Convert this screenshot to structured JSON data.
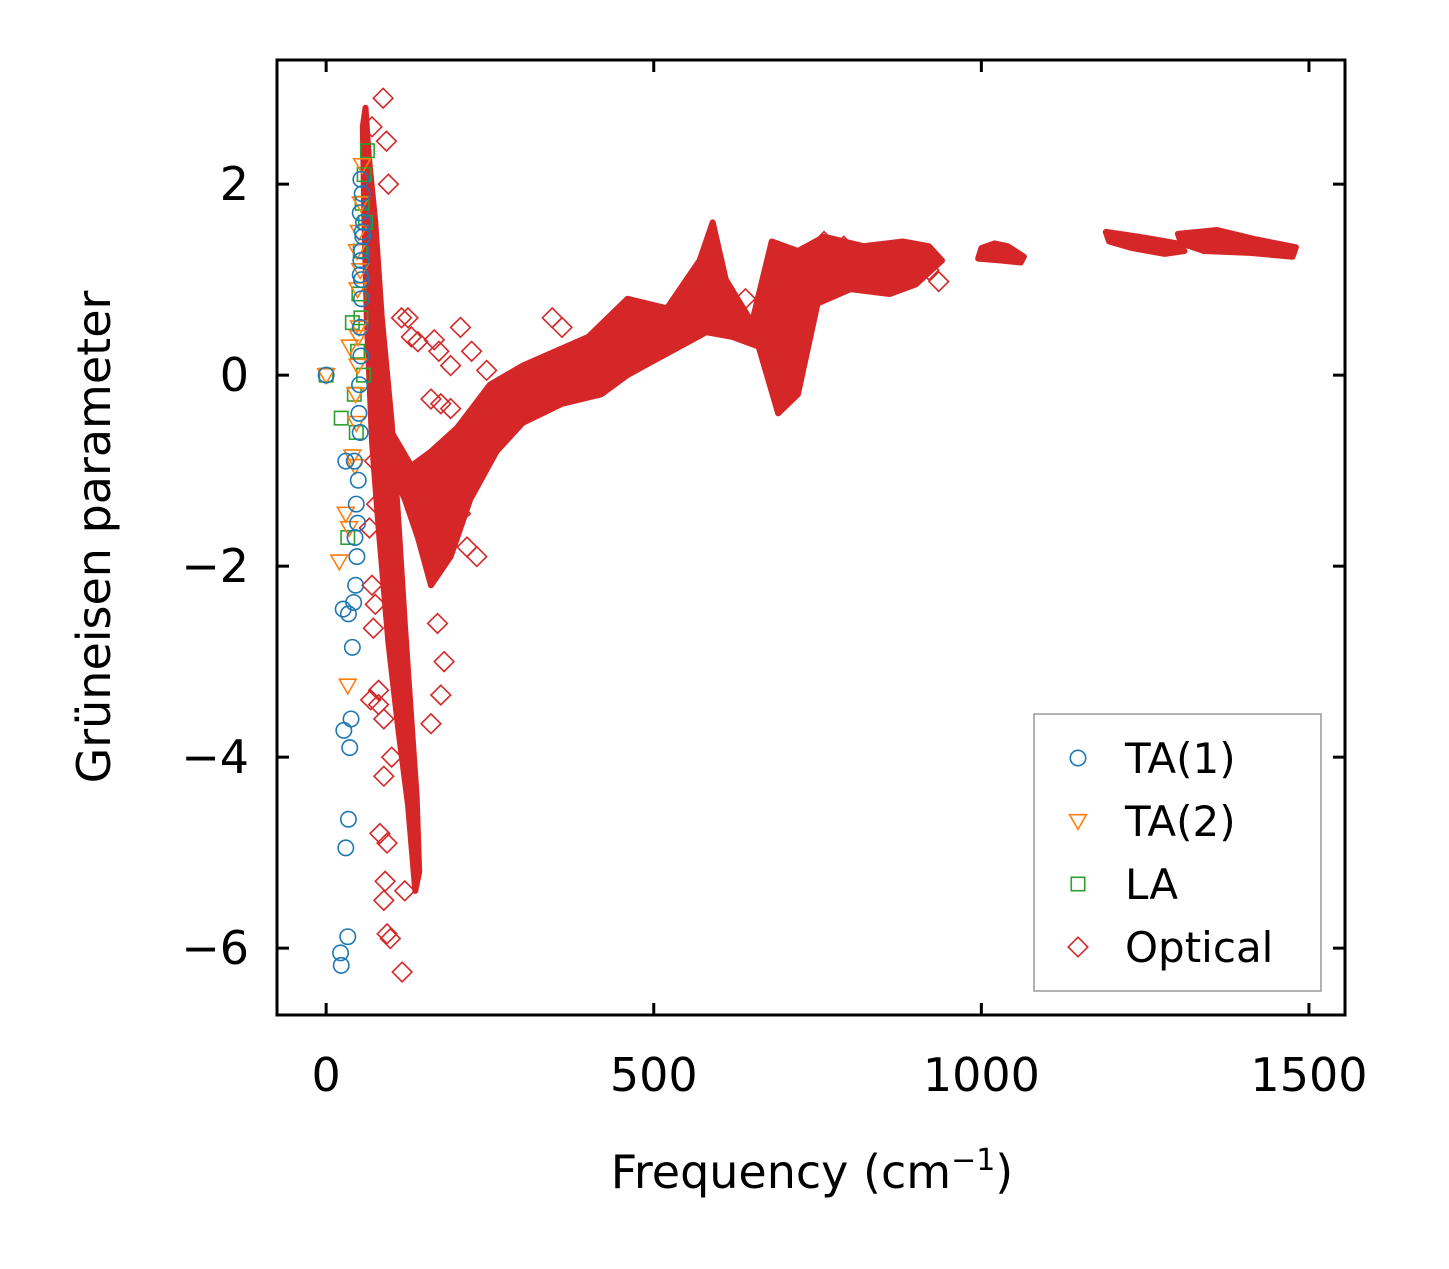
{
  "chart_data": {
    "type": "scatter",
    "title": "",
    "xlabel": "Frequency (cm",
    "xlabel_sup": "−1",
    "xlabel_close": ")",
    "ylabel": "Grüneisen parameter",
    "xlim": [
      -75,
      1555
    ],
    "ylim": [
      -6.7,
      3.3
    ],
    "x_ticks": [
      0,
      500,
      1000,
      1500
    ],
    "x_tick_labels": [
      "0",
      "500",
      "1000",
      "1500"
    ],
    "y_ticks": [
      -6,
      -4,
      -2,
      0,
      2
    ],
    "y_tick_labels": [
      "−6",
      "−4",
      "−2",
      "0",
      "2"
    ],
    "grid": false,
    "legend_position": "bottom-right",
    "series": [
      {
        "name": "TA(1)",
        "marker": "circle",
        "color": "#1f77b4",
        "points": [
          [
            0,
            0.0
          ],
          [
            22,
            -6.05
          ],
          [
            23,
            -6.18
          ],
          [
            33,
            -5.88
          ],
          [
            30,
            -4.95
          ],
          [
            34,
            -4.65
          ],
          [
            27,
            -3.72
          ],
          [
            36,
            -3.9
          ],
          [
            38,
            -3.6
          ],
          [
            40,
            -2.85
          ],
          [
            26,
            -2.45
          ],
          [
            34,
            -2.5
          ],
          [
            42,
            -2.38
          ],
          [
            45,
            -2.2
          ],
          [
            47,
            -1.9
          ],
          [
            44,
            -1.7
          ],
          [
            48,
            -1.55
          ],
          [
            46,
            -1.35
          ],
          [
            49,
            -1.1
          ],
          [
            43,
            -0.9
          ],
          [
            30,
            -0.9
          ],
          [
            52,
            -0.6
          ],
          [
            50,
            -0.4
          ],
          [
            51,
            -0.1
          ],
          [
            53,
            0.2
          ],
          [
            52,
            0.5
          ],
          [
            54,
            0.8
          ],
          [
            52,
            1.05
          ],
          [
            54,
            1.3
          ],
          [
            55,
            1.5
          ],
          [
            52,
            1.7
          ],
          [
            55,
            1.9
          ],
          [
            53,
            2.05
          ],
          [
            56,
            1.45
          ],
          [
            54,
            1.0
          ],
          [
            57,
            1.6
          ],
          [
            53,
            1.2
          ]
        ]
      },
      {
        "name": "TA(2)",
        "marker": "triangle-down",
        "color": "#ff7f0e",
        "points": [
          [
            0,
            0.0
          ],
          [
            20,
            -1.95
          ],
          [
            33,
            -3.25
          ],
          [
            35,
            -1.6
          ],
          [
            30,
            -1.45
          ],
          [
            36,
            0.3
          ],
          [
            40,
            -0.85
          ],
          [
            44,
            -0.95
          ],
          [
            46,
            -0.5
          ],
          [
            45,
            -0.2
          ],
          [
            48,
            0.1
          ],
          [
            50,
            0.5
          ],
          [
            48,
            0.9
          ],
          [
            52,
            1.1
          ],
          [
            50,
            1.5
          ],
          [
            53,
            1.8
          ],
          [
            55,
            2.2
          ],
          [
            47,
            1.3
          ],
          [
            49,
            0.4
          ]
        ]
      },
      {
        "name": "LA",
        "marker": "square",
        "color": "#2ca02c",
        "points": [
          [
            0,
            0.0
          ],
          [
            23,
            -0.45
          ],
          [
            33,
            -1.7
          ],
          [
            40,
            0.55
          ],
          [
            43,
            -0.2
          ],
          [
            46,
            -0.6
          ],
          [
            48,
            0.25
          ],
          [
            50,
            0.85
          ],
          [
            52,
            1.3
          ],
          [
            55,
            1.8
          ],
          [
            58,
            2.1
          ],
          [
            63,
            2.35
          ],
          [
            57,
            0.0
          ],
          [
            53,
            0.6
          ],
          [
            60,
            1.6
          ]
        ]
      },
      {
        "name": "Optical",
        "marker": "diamond",
        "color": "#d62728",
        "dense_band": [
          [
            60,
            2.8
          ],
          [
            65,
            2.3
          ],
          [
            75,
            1.6
          ],
          [
            85,
            0.6
          ],
          [
            100,
            -0.5
          ],
          [
            110,
            -1.5
          ],
          [
            120,
            -2.6
          ],
          [
            130,
            -3.6
          ],
          [
            138,
            -4.4
          ],
          [
            142,
            -5.2
          ],
          [
            136,
            -5.4
          ],
          [
            125,
            -4.5
          ],
          [
            110,
            -3.7
          ],
          [
            95,
            -2.8
          ],
          [
            80,
            -1.6
          ],
          [
            70,
            -0.7
          ],
          [
            62,
            0.6
          ],
          [
            58,
            1.8
          ],
          [
            56,
            2.6
          ]
        ],
        "dense_band_upper": [
          [
            60,
            2.75
          ],
          [
            70,
            1.4
          ],
          [
            85,
            -0.2
          ],
          [
            100,
            -0.6
          ],
          [
            130,
            -0.95
          ],
          [
            160,
            -0.8
          ],
          [
            200,
            -0.55
          ],
          [
            250,
            -0.1
          ],
          [
            300,
            0.1
          ],
          [
            350,
            0.25
          ],
          [
            400,
            0.4
          ],
          [
            460,
            0.8
          ],
          [
            520,
            0.7
          ],
          [
            570,
            1.2
          ],
          [
            590,
            1.6
          ],
          [
            610,
            1.0
          ],
          [
            650,
            0.55
          ],
          [
            680,
            1.4
          ],
          [
            720,
            1.3
          ],
          [
            760,
            1.45
          ],
          [
            820,
            1.35
          ],
          [
            880,
            1.4
          ],
          [
            920,
            1.35
          ],
          [
            940,
            1.2
          ],
          [
            900,
            0.95
          ],
          [
            860,
            0.85
          ],
          [
            800,
            0.9
          ],
          [
            750,
            0.75
          ],
          [
            720,
            -0.2
          ],
          [
            690,
            -0.4
          ],
          [
            660,
            0.3
          ],
          [
            620,
            0.4
          ],
          [
            580,
            0.45
          ],
          [
            540,
            0.3
          ],
          [
            500,
            0.15
          ],
          [
            460,
            0.0
          ],
          [
            420,
            -0.2
          ],
          [
            360,
            -0.3
          ],
          [
            300,
            -0.5
          ],
          [
            260,
            -0.8
          ],
          [
            220,
            -1.3
          ],
          [
            190,
            -1.9
          ],
          [
            160,
            -2.2
          ],
          [
            140,
            -1.7
          ],
          [
            120,
            -1.3
          ],
          [
            100,
            -1.0
          ],
          [
            80,
            -0.6
          ]
        ],
        "segments": [
          [
            [
              1000,
              1.33
            ],
            [
              1020,
              1.38
            ],
            [
              1040,
              1.35
            ],
            [
              1065,
              1.24
            ],
            [
              1060,
              1.18
            ],
            [
              1030,
              1.2
            ],
            [
              995,
              1.22
            ]
          ],
          [
            [
              1190,
              1.5
            ],
            [
              1240,
              1.45
            ],
            [
              1300,
              1.38
            ],
            [
              1310,
              1.3
            ],
            [
              1280,
              1.27
            ],
            [
              1230,
              1.33
            ],
            [
              1195,
              1.4
            ]
          ],
          [
            [
              1300,
              1.48
            ],
            [
              1360,
              1.52
            ],
            [
              1420,
              1.42
            ],
            [
              1480,
              1.34
            ],
            [
              1475,
              1.24
            ],
            [
              1410,
              1.28
            ],
            [
              1340,
              1.3
            ],
            [
              1305,
              1.38
            ]
          ]
        ],
        "points": [
          [
            87,
            2.9
          ],
          [
            92,
            2.45
          ],
          [
            70,
            2.6
          ],
          [
            95,
            2.0
          ],
          [
            115,
            0.6
          ],
          [
            125,
            0.6
          ],
          [
            130,
            0.4
          ],
          [
            165,
            0.37
          ],
          [
            140,
            0.35
          ],
          [
            205,
            0.5
          ],
          [
            222,
            0.25
          ],
          [
            172,
            0.25
          ],
          [
            190,
            0.1
          ],
          [
            160,
            -0.25
          ],
          [
            175,
            -0.3
          ],
          [
            190,
            -0.35
          ],
          [
            245,
            0.05
          ],
          [
            345,
            0.6
          ],
          [
            360,
            0.5
          ],
          [
            410,
            0.2
          ],
          [
            430,
            0.2
          ],
          [
            470,
            0.6
          ],
          [
            505,
            0.45
          ],
          [
            640,
            0.8
          ],
          [
            760,
            1.4
          ],
          [
            790,
            1.35
          ],
          [
            935,
            0.98
          ],
          [
            920,
            1.1
          ],
          [
            205,
            -1.45
          ],
          [
            215,
            -1.8
          ],
          [
            230,
            -1.9
          ],
          [
            170,
            -2.6
          ],
          [
            180,
            -3.0
          ],
          [
            175,
            -3.35
          ],
          [
            160,
            -3.65
          ],
          [
            80,
            -3.3
          ],
          [
            80,
            -3.45
          ],
          [
            88,
            -3.6
          ],
          [
            100,
            -4.0
          ],
          [
            88,
            -4.2
          ],
          [
            93,
            -4.9
          ],
          [
            82,
            -4.8
          ],
          [
            90,
            -5.3
          ],
          [
            88,
            -5.5
          ],
          [
            93,
            -5.85
          ],
          [
            98,
            -5.9
          ],
          [
            120,
            -5.4
          ],
          [
            116,
            -6.25
          ],
          [
            70,
            -2.2
          ],
          [
            75,
            -2.4
          ],
          [
            72,
            -2.65
          ],
          [
            68,
            -3.4
          ],
          [
            77,
            -1.35
          ],
          [
            66,
            -1.6
          ],
          [
            74,
            -0.9
          ]
        ]
      }
    ]
  }
}
